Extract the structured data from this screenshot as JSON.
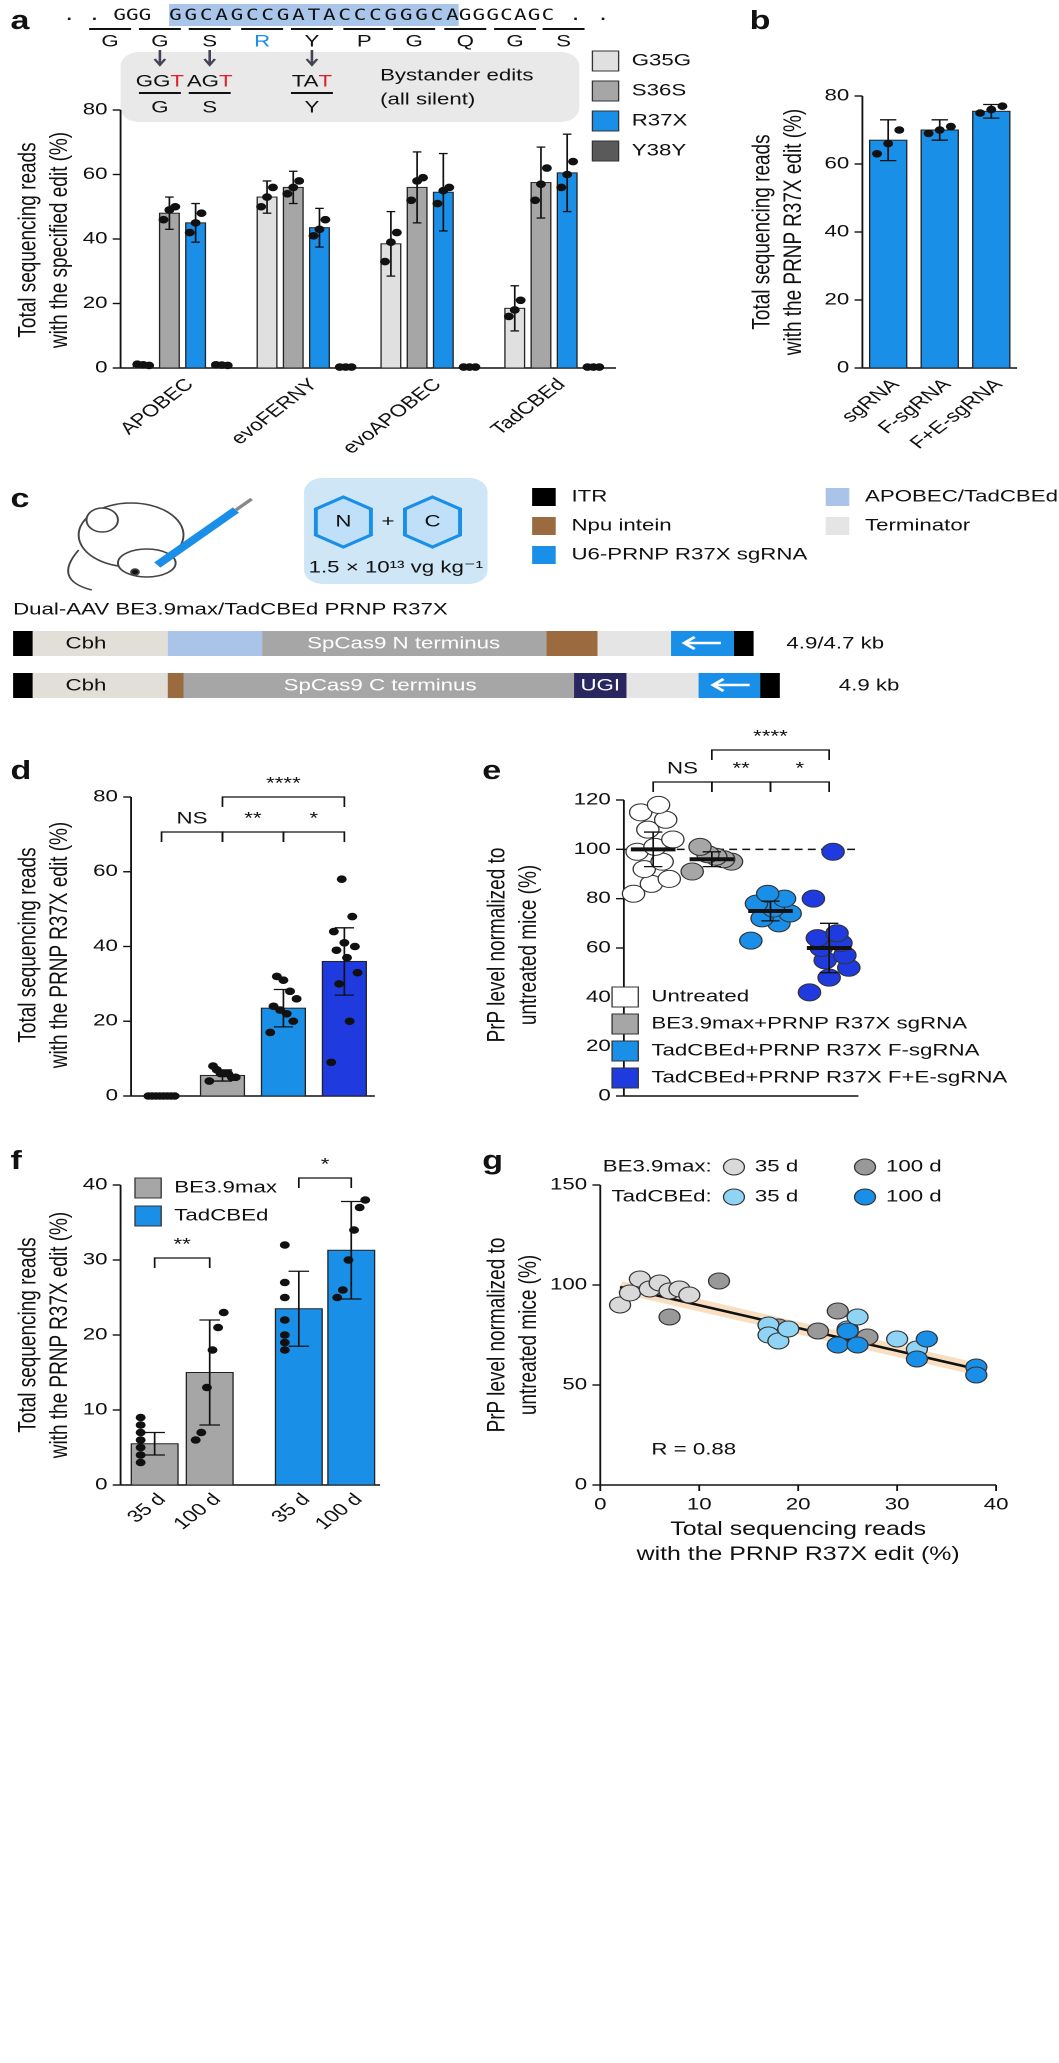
{
  "panel_a_header": {
    "sequence_left": ". . GGG",
    "sequence_highlight": "GGCAGCCGATACCCGGGCA",
    "sequence_right": "GGGCAGC . .",
    "amino_acids": [
      "G",
      "G",
      "S",
      "R",
      "Y",
      "P",
      "G",
      "Q",
      "G",
      "S"
    ],
    "bystander_edits": [
      {
        "unchanged": "GG",
        "edited": "T",
        "amino_acid": "G"
      },
      {
        "unchanged": "AG",
        "edited": "T",
        "amino_acid": "S"
      },
      {
        "unchanged": "TA",
        "edited": "T",
        "amino_acid": "Y"
      }
    ],
    "bystander_label": [
      "Bystander edits",
      "(all silent)"
    ]
  },
  "panel_c": {
    "label": "c",
    "legend": [
      {
        "name": "ITR",
        "color": "#000000"
      },
      {
        "name": "Npu intein",
        "color": "#9b6a3f"
      },
      {
        "name": "U6-PRNP R37X sgRNA",
        "color": "#1a8fe8"
      },
      {
        "name": "APOBEC/TadCBEd",
        "color": "#aac3e8"
      },
      {
        "name": "Terminator",
        "color": "#e5e5e5"
      }
    ],
    "vector_N": "N",
    "plus": "+",
    "vector_C": "C",
    "dose": "1.5 × 10¹³ vg kg⁻¹",
    "construct_title": "Dual-AAV BE3.9max/TadCBEd PRNP R37X",
    "constructs": [
      {
        "parts": [
          "Cbh",
          "SpCas9 N terminus"
        ],
        "size": "4.9/4.7 kb"
      },
      {
        "parts": [
          "Cbh",
          "SpCas9 C terminus",
          "UGI"
        ],
        "size": "4.9 kb"
      }
    ]
  },
  "chart_data": [
    {
      "type": "bar",
      "panel": "a",
      "ylabel": [
        "Total sequencing reads",
        "with the specified edit (%)"
      ],
      "categories": [
        "APOBEC",
        "evoFERNY",
        "evoAPOBEC",
        "TadCBEd"
      ],
      "series": [
        {
          "name": "G35G",
          "color": "#e0e0e0",
          "values": [
            1,
            53,
            38.5,
            18.5
          ],
          "errors": [
            0.3,
            5,
            10,
            7
          ],
          "points": [
            [
              1.2,
              1,
              0.8
            ],
            [
              50,
              53,
              56
            ],
            [
              33,
              39,
              42
            ],
            [
              16,
              18,
              21
            ]
          ]
        },
        {
          "name": "S36S",
          "color": "#a6a6a6",
          "values": [
            48,
            56,
            56,
            57.5
          ],
          "errors": [
            5,
            5,
            11,
            11
          ],
          "points": [
            [
              46,
              49,
              50
            ],
            [
              54,
              56,
              58
            ],
            [
              52,
              58,
              59
            ],
            [
              52,
              57,
              62
            ]
          ]
        },
        {
          "name": "R37X",
          "color": "#1a8fe8",
          "values": [
            45,
            43.5,
            54.5,
            60.5
          ],
          "errors": [
            6,
            6,
            12,
            12
          ],
          "points": [
            [
              42,
              45,
              48
            ],
            [
              41,
              43,
              46
            ],
            [
              51,
              55,
              56
            ],
            [
              56,
              60,
              64
            ]
          ]
        },
        {
          "name": "Y38Y",
          "color": "#5a5a5a",
          "values": [
            1,
            0.3,
            0.3,
            0.3
          ],
          "errors": [
            0.2,
            0.2,
            0.2,
            0.2
          ],
          "points": [
            [
              1,
              0.9,
              0.8
            ],
            [
              0.3,
              0.3,
              0.3
            ],
            [
              0.3,
              0.3,
              0.3
            ],
            [
              0.3,
              0.3,
              0.3
            ]
          ]
        }
      ],
      "ylim": [
        0,
        80
      ],
      "yticks": [
        0,
        20,
        40,
        60,
        80
      ]
    },
    {
      "type": "bar",
      "panel": "b",
      "ylabel": [
        "Total sequencing reads",
        "with the PRNP R37X edit (%)"
      ],
      "categories": [
        "sgRNA",
        "F-sgRNA",
        "F+E-sgRNA"
      ],
      "values": [
        67,
        70,
        75.5
      ],
      "errors": [
        6,
        3,
        2
      ],
      "points": [
        [
          63,
          66,
          70
        ],
        [
          69,
          70,
          71
        ],
        [
          75,
          76,
          77
        ]
      ],
      "color": "#1a8fe8",
      "ylim": [
        0,
        80
      ],
      "yticks": [
        0,
        20,
        40,
        60,
        80
      ]
    },
    {
      "type": "bar",
      "panel": "d",
      "ylabel": [
        "Total sequencing reads",
        "with the PRNP R37X edit (%)"
      ],
      "categories": [
        null,
        null,
        null,
        null
      ],
      "values": [
        0,
        5.5,
        23.5,
        36
      ],
      "errors": [
        0.3,
        1.5,
        5,
        9
      ],
      "points": [
        [
          0,
          0,
          0,
          0,
          0,
          0,
          0,
          0
        ],
        [
          4,
          5,
          5,
          6,
          6,
          6,
          7,
          8
        ],
        [
          17,
          20,
          22,
          23,
          24,
          26,
          28,
          31,
          32
        ],
        [
          9,
          20,
          30,
          33,
          37,
          39,
          40,
          41,
          44,
          48,
          58
        ]
      ],
      "colors": [
        "#ffffff",
        "#a6a6a6",
        "#1a8fe8",
        "#1f3be0"
      ],
      "annotations": [
        "NS",
        "**",
        "*",
        "****"
      ],
      "ylim": [
        0,
        80
      ],
      "yticks": [
        0,
        20,
        40,
        60,
        80
      ]
    },
    {
      "type": "strip",
      "panel": "e",
      "ylabel": [
        "PrP level normalized to",
        "untreated mice (%)"
      ],
      "series": [
        {
          "name": "Untreated",
          "color": "#ffffff",
          "values": [
            100
          ],
          "errors": [
            7
          ],
          "points": [
            82,
            86,
            88,
            92,
            95,
            99,
            101,
            104,
            108,
            112,
            115,
            118
          ]
        },
        {
          "name": "BE3.9max+PRNP R37X sgRNA",
          "color": "#a6a6a6",
          "values": [
            96
          ],
          "errors": [
            3
          ],
          "points": [
            91,
            95,
            96,
            97,
            98,
            101
          ]
        },
        {
          "name": "TadCBEd+PRNP R37X F-sgRNA",
          "color": "#1a8fe8",
          "values": [
            75
          ],
          "errors": [
            4
          ],
          "points": [
            63,
            70,
            72,
            74,
            76,
            78,
            80,
            82
          ]
        },
        {
          "name": "TadCBEd+PRNP R37X F+E-sgRNA",
          "color": "#1f3be0",
          "values": [
            60
          ],
          "errors": [
            10
          ],
          "points": [
            42,
            48,
            52,
            55,
            57,
            60,
            62,
            64,
            66,
            80,
            99
          ]
        }
      ],
      "reference_line": 100,
      "annotations": [
        "NS",
        "**",
        "*",
        "****"
      ],
      "ylim": [
        0,
        120
      ],
      "yticks": [
        0,
        20,
        40,
        60,
        80,
        100,
        120
      ]
    },
    {
      "type": "bar",
      "panel": "f",
      "ylabel": [
        "Total sequencing reads",
        "with the PRNP R37X edit (%)"
      ],
      "categories": [
        "35 d",
        "100 d",
        "35 d",
        "100 d"
      ],
      "values": [
        5.5,
        15,
        23.5,
        31.3
      ],
      "errors": [
        1.5,
        7,
        5,
        6.5
      ],
      "points": [
        [
          3,
          4,
          5,
          6,
          7,
          8,
          9
        ],
        [
          6,
          7,
          13,
          18,
          21,
          23
        ],
        [
          18,
          19,
          20,
          22,
          25,
          27,
          32
        ],
        [
          25,
          26,
          30,
          34,
          37,
          38
        ]
      ],
      "colors": [
        "#a6a6a6",
        "#a6a6a6",
        "#1a8fe8",
        "#1a8fe8"
      ],
      "legend": [
        {
          "name": "BE3.9max",
          "color": "#a6a6a6"
        },
        {
          "name": "TadCBEd",
          "color": "#1a8fe8"
        }
      ],
      "annotations": [
        "**",
        "*"
      ],
      "ylim": [
        0,
        40
      ],
      "yticks": [
        0,
        10,
        20,
        30,
        40
      ]
    },
    {
      "type": "scatter",
      "panel": "g",
      "ylabel": [
        "PrP level normalized to",
        "untreated mice (%)"
      ],
      "xlabel": [
        "Total sequencing reads",
        "with the PRNP R37X edit (%)"
      ],
      "legend_groups": [
        "BE3.9max:",
        "TadCBEd:"
      ],
      "series": [
        {
          "name": "35 d",
          "color": "#d9d9d9",
          "x": [
            2,
            3,
            4,
            5,
            6,
            7,
            8,
            9
          ],
          "y": [
            90,
            96,
            103,
            98,
            101,
            97,
            98,
            95
          ]
        },
        {
          "name": "100 d",
          "color": "#999999",
          "x": [
            7,
            12,
            18,
            22,
            24,
            27
          ],
          "y": [
            84,
            102,
            79,
            77,
            87,
            74
          ]
        },
        {
          "name": "35 d",
          "color": "#8fd3f5",
          "x": [
            17,
            17,
            18,
            19,
            25,
            26,
            30,
            32
          ],
          "y": [
            80,
            75,
            72,
            78,
            78,
            84,
            73,
            68
          ]
        },
        {
          "name": "100 d",
          "color": "#1a8fe8",
          "x": [
            24,
            25,
            26,
            32,
            33,
            38,
            38
          ],
          "y": [
            70,
            77,
            70,
            63,
            73,
            59,
            55
          ]
        }
      ],
      "fit": {
        "x": [
          2,
          38
        ],
        "y": [
          99,
          58
        ]
      },
      "annotation": "R = 0.88",
      "xlim": [
        0,
        40
      ],
      "xticks": [
        0,
        10,
        20,
        30,
        40
      ],
      "ylim": [
        0,
        150
      ],
      "yticks": [
        0,
        50,
        100,
        150
      ]
    }
  ]
}
